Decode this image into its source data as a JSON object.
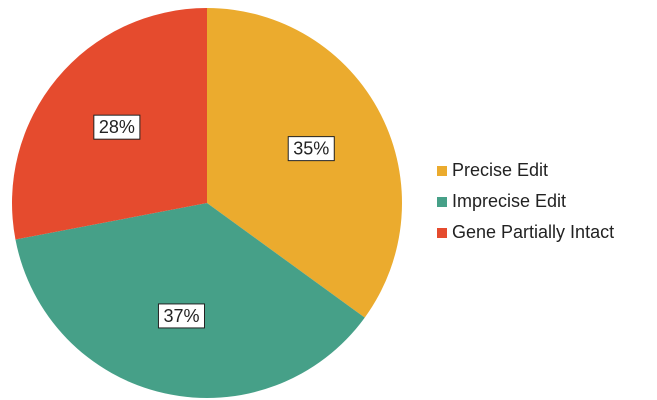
{
  "chart_data": {
    "type": "pie",
    "categories": [
      "Precise Edit",
      "Imprecise Edit",
      "Gene Partially Intact"
    ],
    "values": [
      35,
      37,
      28
    ],
    "value_labels": [
      "35%",
      "37%",
      "28%"
    ],
    "colors": [
      "#ebab2e",
      "#46a088",
      "#e54b2e"
    ],
    "legend": "right"
  }
}
